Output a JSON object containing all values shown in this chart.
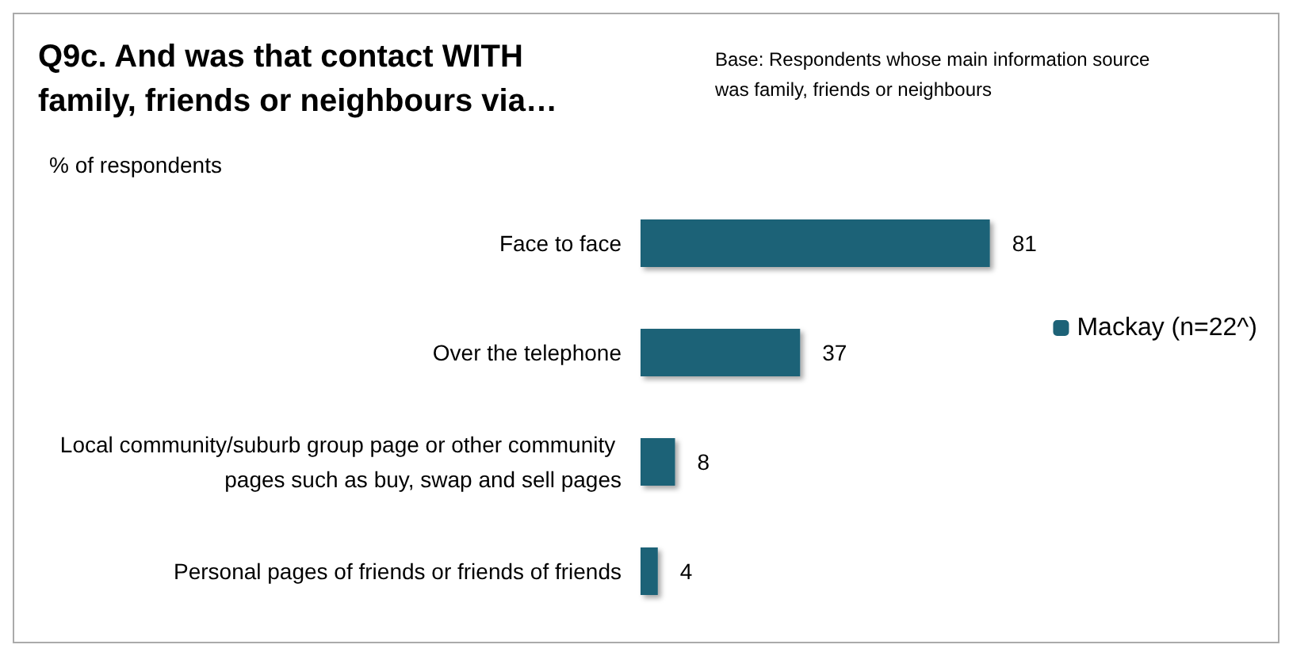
{
  "chart_data": {
    "type": "bar",
    "orientation": "horizontal",
    "title": "Q9c. And was that contact WITH family, friends or neighbours via…",
    "subtitle": "Base: Respondents whose main information source was family, friends or neighbours",
    "annotations": [
      "% of respondents"
    ],
    "categories": [
      "Face to face",
      "Over the telephone",
      "Local community/suburb group page or other community pages such as buy, swap and sell pages",
      "Personal pages of friends or friends of friends"
    ],
    "series": [
      {
        "name": "Mackay (n=22^)",
        "color": "#1d6277",
        "values": [
          81,
          37,
          8,
          4
        ]
      }
    ],
    "data_labels": true,
    "grid": false,
    "legend": "right"
  }
}
